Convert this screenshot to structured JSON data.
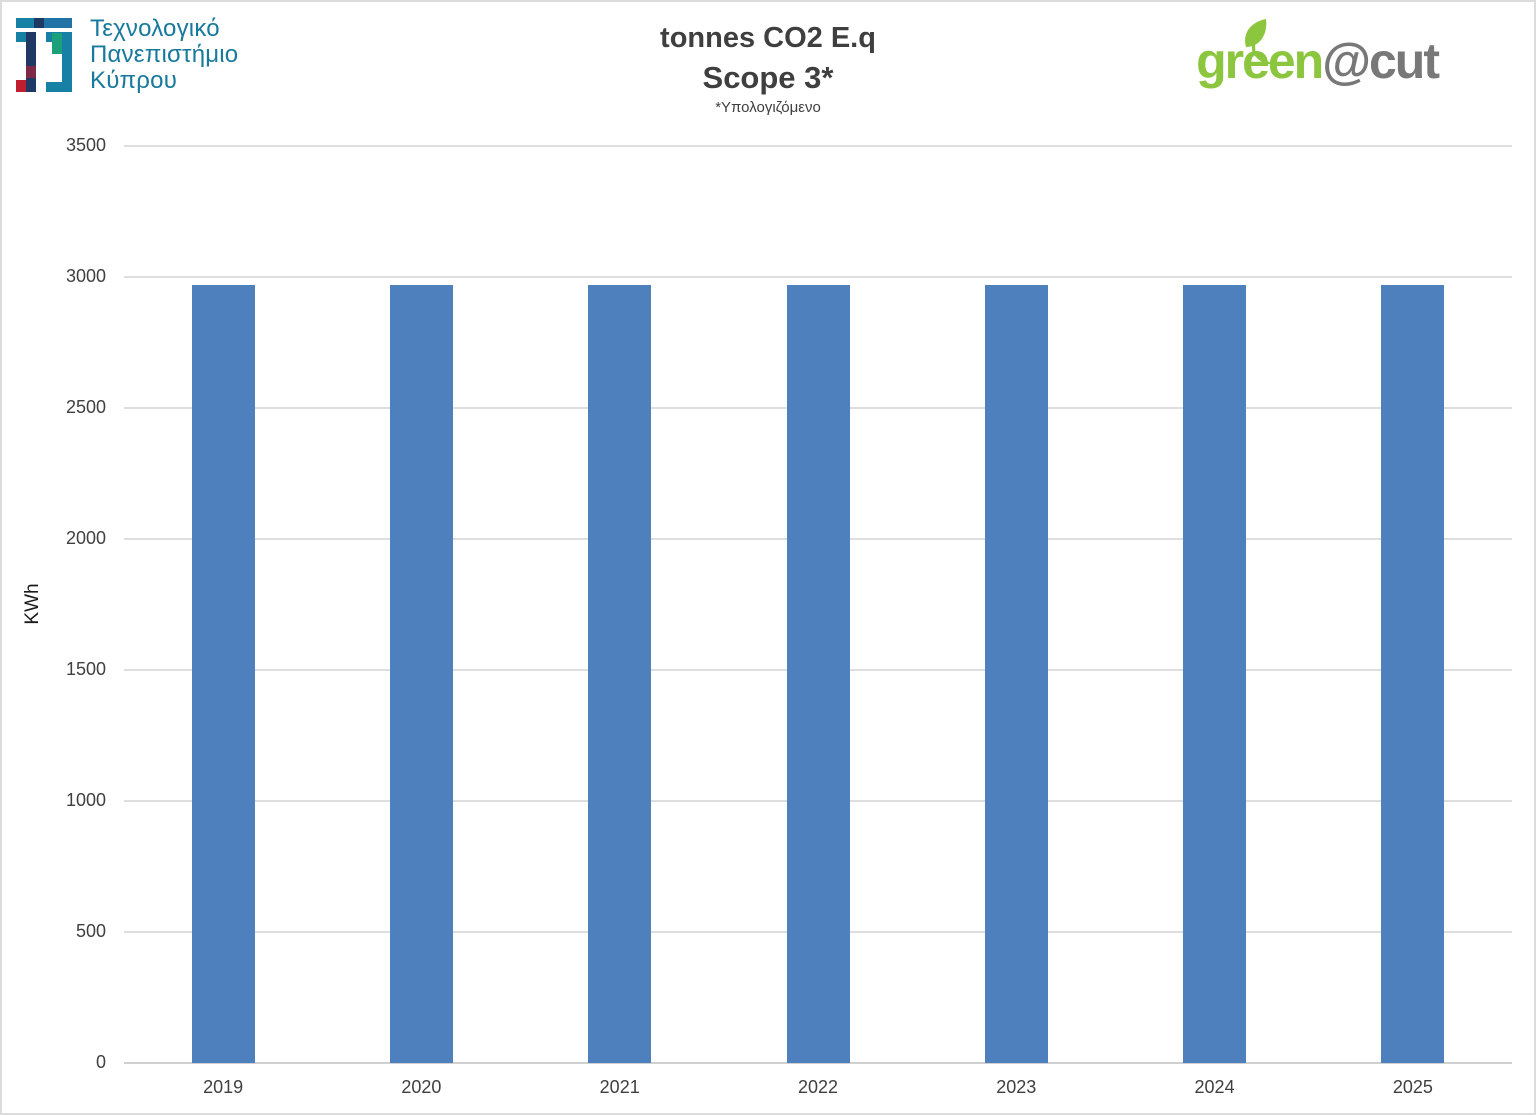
{
  "header": {
    "university": {
      "line1": "Τεχνολογικό",
      "line2": "Πανεπιστήμιο",
      "line3": "Κύπρου"
    },
    "brand": {
      "green": "green",
      "rest": "@cut"
    }
  },
  "title": {
    "line1": "tonnes CO2 E.q",
    "line2": "Scope 3*",
    "note": "*Υπολογιζόμενο"
  },
  "chart_data": {
    "type": "bar",
    "title": "tonnes CO2 E.q Scope 3*",
    "subtitle": "*Υπολογιζόμενο",
    "categories": [
      "2019",
      "2020",
      "2021",
      "2022",
      "2023",
      "2024",
      "2025"
    ],
    "values": [
      2970,
      2970,
      2970,
      2970,
      2970,
      2970,
      2970
    ],
    "xlabel": "",
    "ylabel": "KWh",
    "ylim": [
      0,
      3500
    ],
    "yticks": [
      0,
      500,
      1000,
      1500,
      2000,
      2500,
      3000,
      3500
    ],
    "grid": true,
    "legend": "none",
    "bar_color": "#4E80BD"
  },
  "colors": {
    "bar": "#4E80BD",
    "gridline": "#DEDEDE",
    "axis_line": "#D0D0D0",
    "tick_text": "#404040",
    "title_text": "#3F3F3F",
    "university_teal": "#17799C",
    "brand_green": "#8CC63F",
    "brand_gray": "#787878"
  }
}
